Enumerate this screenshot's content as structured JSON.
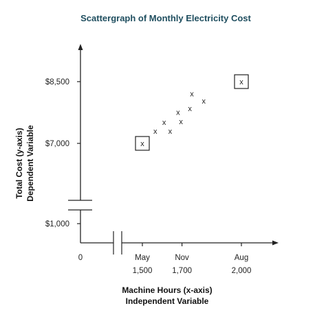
{
  "chart_data": {
    "type": "scatter",
    "title": "Scattergraph of Monthly Electricity Cost",
    "xlabel": [
      "Machine Hours (x-axis)",
      "Independent Variable"
    ],
    "ylabel": [
      "Total Cost  (y-axis)",
      "Dependent Variable"
    ],
    "x_origin_label": "0",
    "x_ticks": [
      {
        "month": "May",
        "value": 1500,
        "label": "1,500"
      },
      {
        "month": "Nov",
        "value": 1700,
        "label": "1,700"
      },
      {
        "month": "Aug",
        "value": 2000,
        "label": "2,000"
      }
    ],
    "y_ticks": [
      {
        "value": 1000,
        "label": "$1,000"
      },
      {
        "value": 7000,
        "label": "$7,000"
      },
      {
        "value": 8500,
        "label": "$8,500"
      }
    ],
    "axis_breaks": [
      "x",
      "y"
    ],
    "marker_symbol": "x",
    "points": [
      {
        "x": 1500,
        "y": 7000,
        "boxed": true
      },
      {
        "x": 1565,
        "y": 7300
      },
      {
        "x": 1610,
        "y": 7520
      },
      {
        "x": 1640,
        "y": 7300
      },
      {
        "x": 1680,
        "y": 7760
      },
      {
        "x": 1695,
        "y": 7530
      },
      {
        "x": 1740,
        "y": 7850
      },
      {
        "x": 1750,
        "y": 8210
      },
      {
        "x": 1810,
        "y": 8030
      },
      {
        "x": 2000,
        "y": 8500,
        "boxed": true
      }
    ],
    "grid": false,
    "legend": "none"
  }
}
